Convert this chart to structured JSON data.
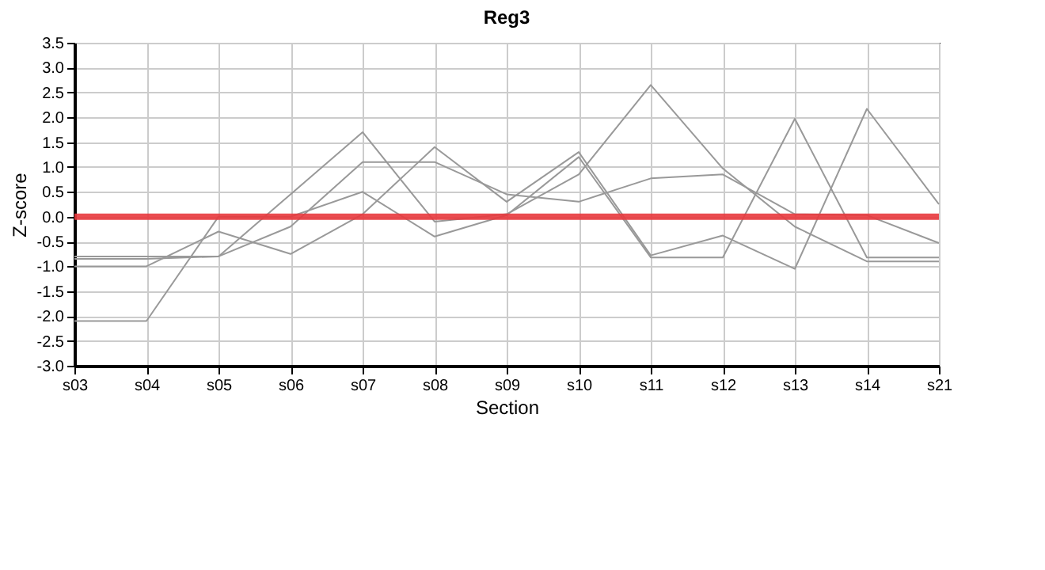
{
  "chart_data": {
    "type": "line",
    "title": "Reg3",
    "xlabel": "Section",
    "ylabel": "Z-score",
    "categories": [
      "s03",
      "s04",
      "s05",
      "s06",
      "s07",
      "s08",
      "s09",
      "s10",
      "s11",
      "s12",
      "s13",
      "s14",
      "s21"
    ],
    "series": [
      {
        "color": "#999999",
        "values": [
          -0.85,
          -0.85,
          -0.8,
          0.45,
          1.7,
          -0.1,
          0.05,
          0.85,
          2.65,
          0.97,
          -0.2,
          -0.9,
          -0.9
        ]
      },
      {
        "color": "#999999",
        "values": [
          -1.0,
          -1.0,
          -0.3,
          -0.75,
          0.05,
          1.4,
          0.3,
          1.3,
          -0.78,
          -0.38,
          -1.05,
          2.17,
          0.25
        ]
      },
      {
        "color": "#999999",
        "values": [
          -2.1,
          -2.1,
          0.0,
          0.0,
          0.5,
          -0.4,
          0.03,
          1.2,
          -0.82,
          -0.82,
          1.97,
          -0.82,
          -0.82
        ]
      },
      {
        "color": "#999999",
        "values": [
          -0.8,
          -0.8,
          -0.8,
          -0.2,
          1.1,
          1.1,
          0.45,
          0.3,
          0.77,
          0.85,
          0.05,
          0.03,
          -0.53
        ]
      }
    ],
    "ylim": [
      -3.0,
      3.5
    ],
    "yticks": [
      {
        "value": -3.0,
        "label": "-3.0"
      },
      {
        "value": -2.5,
        "label": "-2.5"
      },
      {
        "value": -2.0,
        "label": "-2.0"
      },
      {
        "value": -1.5,
        "label": "-1.5"
      },
      {
        "value": -1.0,
        "label": "-1.0"
      },
      {
        "value": -0.5,
        "label": "-0.5"
      },
      {
        "value": 0,
        "label": "0.0"
      },
      {
        "value": 0.5,
        "label": "0.5"
      },
      {
        "value": 1.0,
        "label": "1.0"
      },
      {
        "value": 1.5,
        "label": "1.5"
      },
      {
        "value": 2.0,
        "label": "2.0"
      },
      {
        "value": 2.5,
        "label": "2.5"
      },
      {
        "value": 3.0,
        "label": "3.0"
      },
      {
        "value": 3.5,
        "label": "3.5"
      }
    ],
    "ref_lines": [
      {
        "axis": "y",
        "value": 0,
        "color": "#e8383d"
      }
    ],
    "grid": true,
    "marker": "none",
    "line_style": "solid"
  }
}
